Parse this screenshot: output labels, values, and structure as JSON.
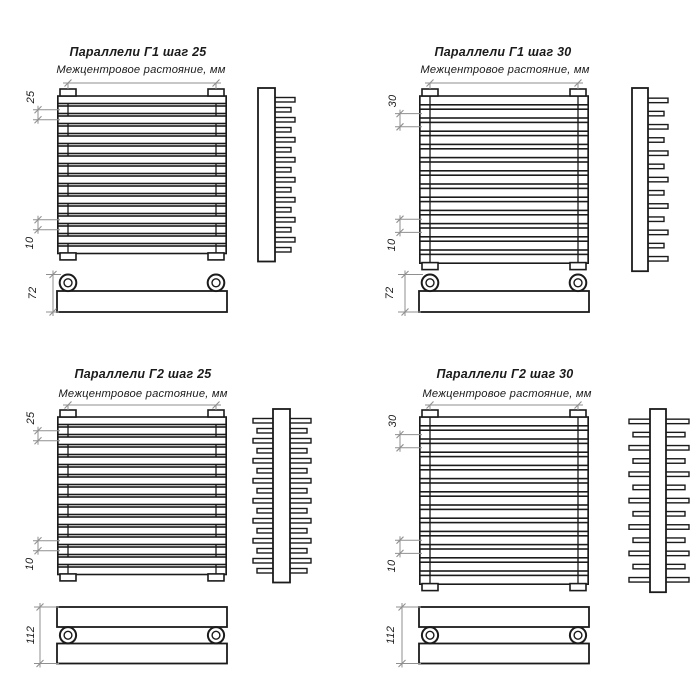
{
  "colors": {
    "line": "#1b1b1b",
    "dim": "#8f8f8f",
    "text": "#1b1b1b",
    "background": "#ffffff"
  },
  "panels": [
    {
      "id": "g1-step-25",
      "title": "Параллели Г1 шаг 25",
      "subtitle": "Межцентровое растояние, мм",
      "model": "Г1",
      "step": "25",
      "dims": {
        "pitch": "25",
        "bottom_gap": "10",
        "depth": "72"
      },
      "tube_count": 16,
      "collector_sides": 1
    },
    {
      "id": "g1-step-30",
      "title": "Параллели Г1 шаг 30",
      "subtitle": "Межцентровое растояние, мм",
      "model": "Г1",
      "step": "30",
      "dims": {
        "pitch": "30",
        "bottom_gap": "10",
        "depth": "72"
      },
      "tube_count": 13,
      "collector_sides": 1
    },
    {
      "id": "g2-step-25",
      "title": "Параллели Г2 шаг 25",
      "subtitle": "Межцентровое растояние, мм",
      "model": "Г2",
      "step": "25",
      "dims": {
        "pitch": "25",
        "bottom_gap": "10",
        "depth": "112"
      },
      "tube_count": 16,
      "collector_sides": 2
    },
    {
      "id": "g2-step-30",
      "title": "Параллели Г2 шаг 30",
      "subtitle": "Межцентровое растояние, мм",
      "model": "Г2",
      "step": "30",
      "dims": {
        "pitch": "30",
        "bottom_gap": "10",
        "depth": "112"
      },
      "tube_count": 13,
      "collector_sides": 2
    }
  ]
}
